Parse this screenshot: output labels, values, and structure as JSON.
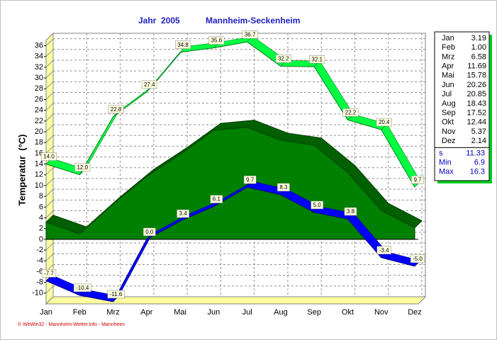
{
  "chart_data": {
    "type": "line",
    "title": "Jahr  2005",
    "subtitle": "Mannheim-Seckenheim",
    "y_label": "Temperatur  (°C)",
    "footer": "© WeWin32 - Mannheim-Wetter.info - Mannheim",
    "categories": [
      "Jan",
      "Feb",
      "Mrz",
      "Apr",
      "Mai",
      "Jun",
      "Jul",
      "Aug",
      "Sep",
      "Okt",
      "Nov",
      "Dez"
    ],
    "ylim": [
      -12,
      37
    ],
    "yticks": [
      -10,
      -8,
      -6,
      -4,
      -2,
      0,
      2,
      4,
      6,
      8,
      10,
      12,
      14,
      16,
      18,
      20,
      22,
      24,
      26,
      28,
      30,
      32,
      34,
      36
    ],
    "grid": true,
    "series": [
      {
        "kind": "ribbon",
        "color": "#00ff40",
        "values": [
          14.0,
          12.0,
          22.8,
          27.4,
          34.8,
          35.6,
          36.7,
          32.2,
          32.1,
          22.2,
          20.4,
          9.7
        ],
        "value_labels": [
          "14.0",
          "12.0",
          "22.8",
          "27.4",
          "34.8",
          "35.6",
          "36.7",
          "32.2",
          "32.1",
          "22.2",
          "20.4",
          "9.7"
        ]
      },
      {
        "kind": "area",
        "color": "#008000",
        "values": [
          3.19,
          1.0,
          6.58,
          11.69,
          15.78,
          20.26,
          20.85,
          18.43,
          17.52,
          12.44,
          5.37,
          2.14
        ],
        "value_labels": [
          "3.19",
          "1.00",
          "6.58",
          "11.69",
          "15.78",
          "20.26",
          "20.85",
          "18.43",
          "17.52",
          "12.44",
          "5.37",
          "2.14"
        ]
      },
      {
        "kind": "ribbon",
        "color": "#0000ff",
        "values": [
          -7.7,
          -10.4,
          -11.6,
          0.0,
          3.4,
          6.1,
          9.7,
          8.3,
          5.0,
          3.8,
          -3.4,
          -5.0
        ],
        "value_labels": [
          "-7.7",
          "-10.4",
          "-11.6",
          "0.0",
          "3.4",
          "6.1",
          "9.7",
          "8.3",
          "5.0",
          "3.8",
          "-3.4",
          "-5.0"
        ]
      }
    ],
    "stats": [
      {
        "label": "s",
        "value": 11.33
      },
      {
        "label": "Min",
        "value": 6.9
      },
      {
        "label": "Max",
        "value": 16.3
      }
    ]
  }
}
